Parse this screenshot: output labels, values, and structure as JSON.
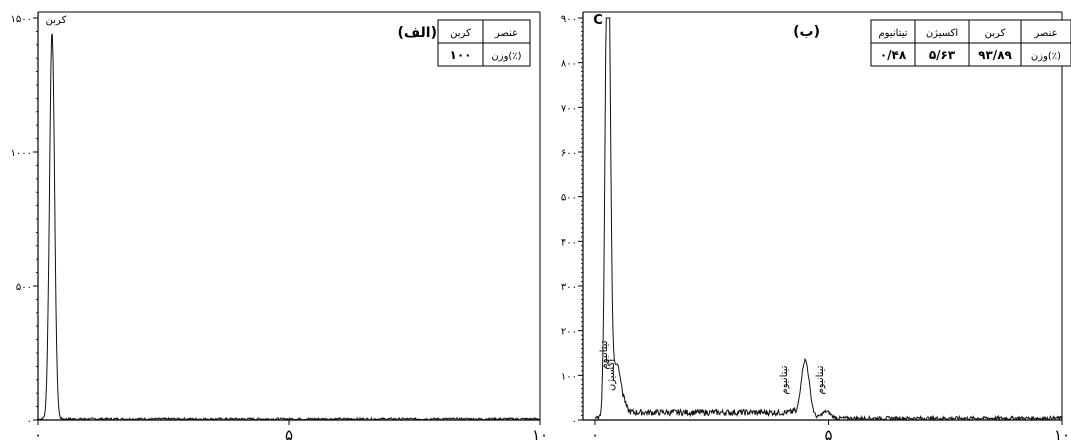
{
  "chart_data": [
    {
      "type": "line",
      "panel_label": "(الف)",
      "x": {
        "min": 0,
        "max": 10,
        "ticks": [
          0,
          5,
          10
        ],
        "tick_labels": [
          "۰",
          "۵",
          "۱۰"
        ]
      },
      "y": {
        "min": 0,
        "max": 1500,
        "ticks": [
          0,
          500,
          1000,
          1500
        ],
        "tick_labels": [
          "۰",
          "۵۰۰",
          "۱۰۰۰",
          "۱۵۰۰"
        ]
      },
      "peaks": [
        {
          "label": "کربن",
          "x": 0.28,
          "height": 1450
        }
      ],
      "table": {
        "header": [
          "کربن",
          "عنصر"
        ],
        "row": [
          "۱۰۰",
          "وزن(٪)"
        ]
      }
    },
    {
      "type": "line",
      "panel_label": "(ب)",
      "x": {
        "min": 0,
        "max": 10,
        "ticks": [
          0,
          5,
          10
        ],
        "tick_labels": [
          "۰",
          "۵",
          "۱۰"
        ]
      },
      "y": {
        "min": 0,
        "max": 900,
        "ticks": [
          0,
          100,
          200,
          300,
          400,
          500,
          600,
          700,
          800,
          900
        ],
        "tick_labels": [
          "۰",
          "۱۰۰",
          "۲۰۰",
          "۳۰۰",
          "۴۰۰",
          "۵۰۰",
          "۶۰۰",
          "۷۰۰",
          "۸۰۰",
          "۹۰۰"
        ]
      },
      "peaks": [
        {
          "label": "C",
          "x": 0.28,
          "height": 900
        },
        {
          "label": "",
          "x": 0.26,
          "height": 350
        },
        {
          "label": "تیتانیوم",
          "x": 0.45,
          "height": 90
        },
        {
          "label": "اکسیژن",
          "x": 0.52,
          "height": 40
        },
        {
          "label": "",
          "x": 4.5,
          "height": 110
        },
        {
          "label": "تیتانیوم",
          "x": 4.5,
          "height": 20
        },
        {
          "label": "تیتانیوم",
          "x": 4.95,
          "height": 15
        }
      ],
      "table": {
        "header": [
          "تیتانیوم",
          "اکسیژن",
          "کربن",
          "عنصر"
        ],
        "row": [
          "۰/۴۸",
          "۵/۶۳",
          "۹۳/۸۹",
          "وزن(٪)"
        ]
      }
    }
  ]
}
